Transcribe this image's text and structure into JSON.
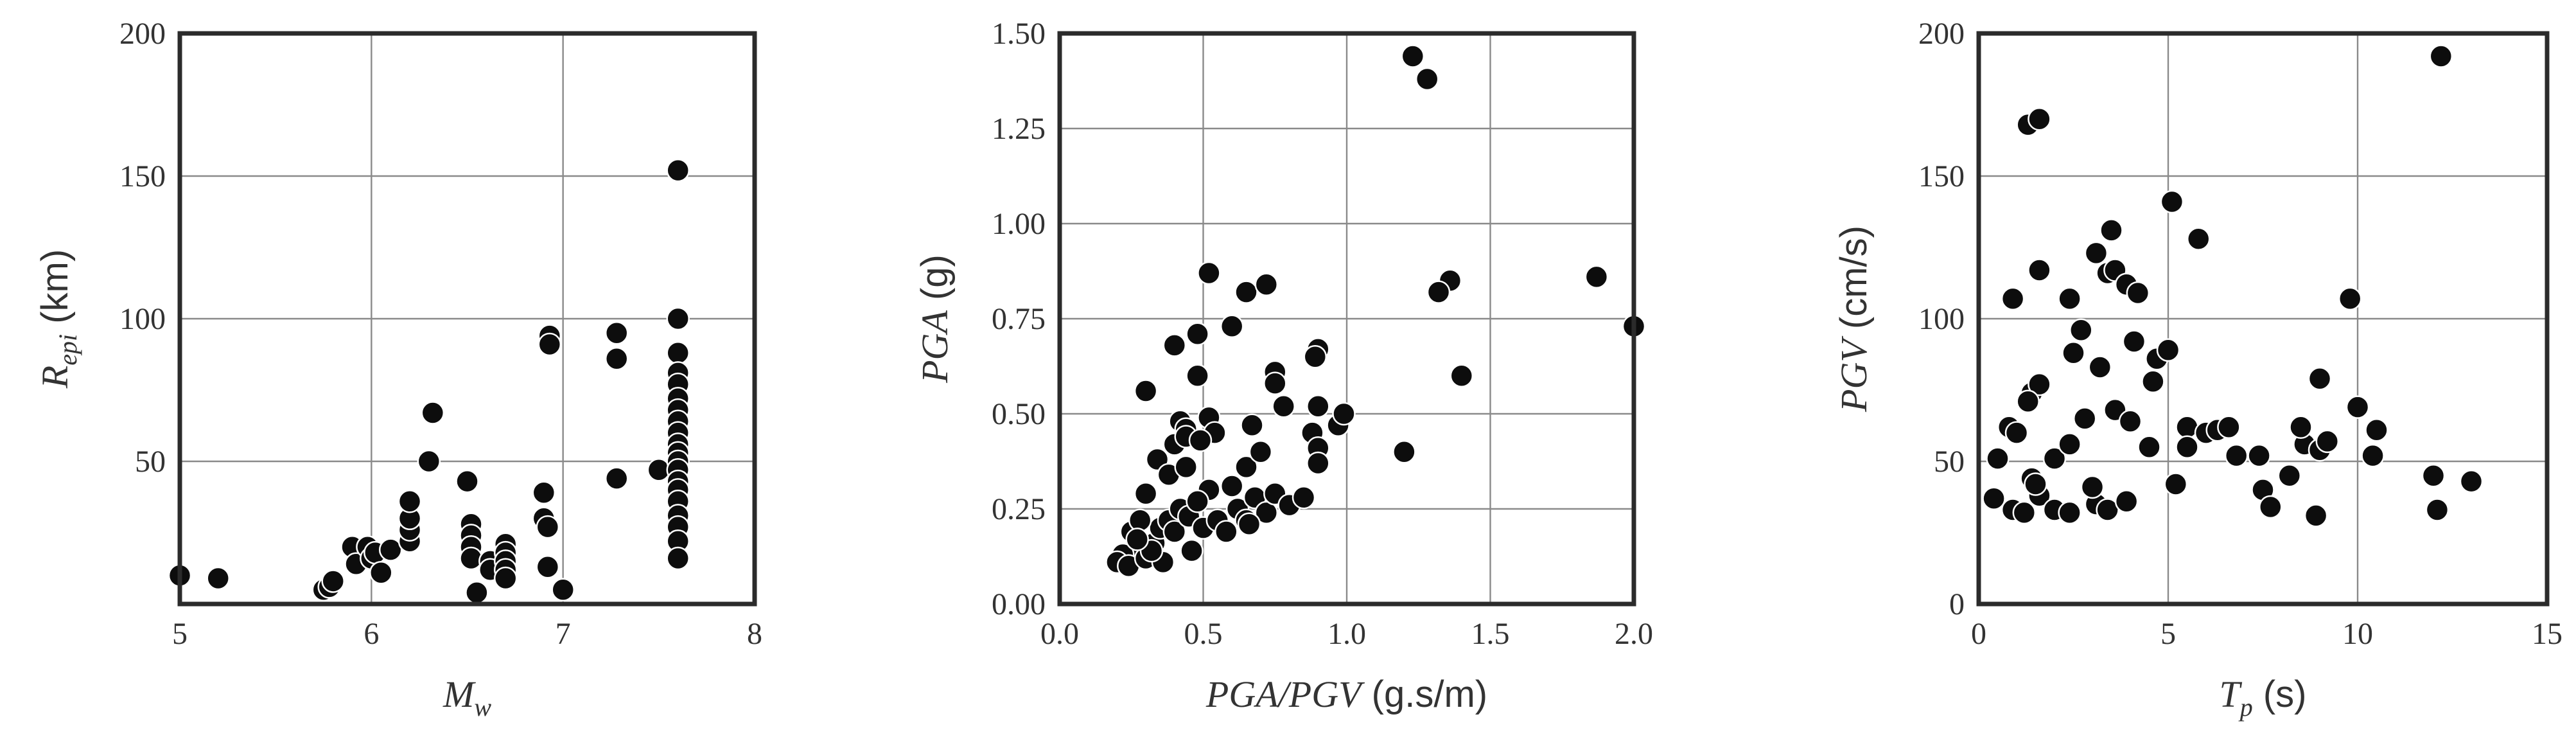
{
  "chart_data": [
    {
      "type": "scatter",
      "xlabel": {
        "main": "M",
        "sub": "w",
        "unit": ""
      },
      "ylabel": {
        "main": "R",
        "sub": "epi",
        "unit": " (km)"
      },
      "xlim": [
        5,
        8
      ],
      "ylim": [
        0,
        200
      ],
      "xticks": [
        5,
        6,
        7,
        8
      ],
      "yticks": [
        50,
        100,
        150,
        200
      ],
      "x_tick_labels": [
        "5",
        "6",
        "7",
        "8"
      ],
      "y_tick_labels": [
        "50",
        "100",
        "150",
        "200"
      ],
      "grid": true,
      "points": [
        [
          5.0,
          10
        ],
        [
          5.2,
          9
        ],
        [
          5.75,
          5
        ],
        [
          5.78,
          6
        ],
        [
          5.8,
          8
        ],
        [
          5.9,
          20
        ],
        [
          5.92,
          14
        ],
        [
          5.98,
          20
        ],
        [
          6.0,
          16
        ],
        [
          6.02,
          18
        ],
        [
          6.05,
          11
        ],
        [
          6.1,
          19
        ],
        [
          6.2,
          22
        ],
        [
          6.2,
          26
        ],
        [
          6.2,
          30
        ],
        [
          6.2,
          36
        ],
        [
          6.3,
          50
        ],
        [
          6.32,
          67
        ],
        [
          6.5,
          43
        ],
        [
          6.52,
          28
        ],
        [
          6.52,
          24
        ],
        [
          6.52,
          20
        ],
        [
          6.52,
          16
        ],
        [
          6.55,
          4
        ],
        [
          6.62,
          15
        ],
        [
          6.62,
          12
        ],
        [
          6.7,
          21
        ],
        [
          6.7,
          18
        ],
        [
          6.7,
          15
        ],
        [
          6.7,
          12
        ],
        [
          6.7,
          9
        ],
        [
          6.9,
          39
        ],
        [
          6.9,
          30
        ],
        [
          6.92,
          27
        ],
        [
          6.92,
          13
        ],
        [
          6.93,
          94
        ],
        [
          6.93,
          91
        ],
        [
          7.0,
          5
        ],
        [
          7.28,
          95
        ],
        [
          7.28,
          86
        ],
        [
          7.28,
          44
        ],
        [
          7.5,
          47
        ],
        [
          7.6,
          152
        ],
        [
          7.6,
          100
        ],
        [
          7.6,
          88
        ],
        [
          7.6,
          81
        ],
        [
          7.6,
          77
        ],
        [
          7.6,
          72
        ],
        [
          7.6,
          68
        ],
        [
          7.6,
          64
        ],
        [
          7.6,
          60
        ],
        [
          7.6,
          56
        ],
        [
          7.6,
          53
        ],
        [
          7.6,
          50
        ],
        [
          7.6,
          47
        ],
        [
          7.6,
          43
        ],
        [
          7.6,
          40
        ],
        [
          7.6,
          36
        ],
        [
          7.6,
          31
        ],
        [
          7.6,
          27
        ],
        [
          7.6,
          22
        ],
        [
          7.6,
          16
        ]
      ]
    },
    {
      "type": "scatter",
      "xlabel": {
        "main": "PGA/PGV",
        "sub": "",
        "unit": " (g.s/m)"
      },
      "ylabel": {
        "main": "PGA",
        "sub": "",
        "unit": " (g)"
      },
      "xlim": [
        0,
        2
      ],
      "ylim": [
        0,
        1.5
      ],
      "xticks": [
        0,
        0.5,
        1,
        1.5,
        2
      ],
      "yticks": [
        0,
        0.25,
        0.5,
        0.75,
        1,
        1.25,
        1.5
      ],
      "x_tick_labels": [
        "0.0",
        "0.5",
        "1.0",
        "1.5",
        "2.0"
      ],
      "y_tick_labels": [
        "0.00",
        "0.25",
        "0.50",
        "0.75",
        "1.00",
        "1.25",
        "1.50"
      ],
      "grid": true,
      "points": [
        [
          1.23,
          1.44
        ],
        [
          1.28,
          1.38
        ],
        [
          0.52,
          0.87
        ],
        [
          0.65,
          0.82
        ],
        [
          0.72,
          0.84
        ],
        [
          1.36,
          0.85
        ],
        [
          1.32,
          0.82
        ],
        [
          1.87,
          0.86
        ],
        [
          2.0,
          0.73
        ],
        [
          0.48,
          0.71
        ],
        [
          0.6,
          0.73
        ],
        [
          0.4,
          0.68
        ],
        [
          0.9,
          0.67
        ],
        [
          0.89,
          0.65
        ],
        [
          0.75,
          0.61
        ],
        [
          0.75,
          0.58
        ],
        [
          0.3,
          0.56
        ],
        [
          1.4,
          0.6
        ],
        [
          0.48,
          0.6
        ],
        [
          0.42,
          0.48
        ],
        [
          0.44,
          0.46
        ],
        [
          0.52,
          0.49
        ],
        [
          0.54,
          0.45
        ],
        [
          0.78,
          0.52
        ],
        [
          0.9,
          0.52
        ],
        [
          0.97,
          0.47
        ],
        [
          0.99,
          0.5
        ],
        [
          0.4,
          0.42
        ],
        [
          0.44,
          0.44
        ],
        [
          0.49,
          0.43
        ],
        [
          0.67,
          0.47
        ],
        [
          0.34,
          0.38
        ],
        [
          0.38,
          0.34
        ],
        [
          0.3,
          0.29
        ],
        [
          0.44,
          0.36
        ],
        [
          0.52,
          0.3
        ],
        [
          0.6,
          0.31
        ],
        [
          0.65,
          0.36
        ],
        [
          0.7,
          0.4
        ],
        [
          0.88,
          0.45
        ],
        [
          0.9,
          0.41
        ],
        [
          0.9,
          0.37
        ],
        [
          1.2,
          0.4
        ],
        [
          0.25,
          0.19
        ],
        [
          0.28,
          0.15
        ],
        [
          0.22,
          0.13
        ],
        [
          0.2,
          0.11
        ],
        [
          0.24,
          0.1
        ],
        [
          0.3,
          0.12
        ],
        [
          0.33,
          0.16
        ],
        [
          0.35,
          0.2
        ],
        [
          0.38,
          0.22
        ],
        [
          0.4,
          0.19
        ],
        [
          0.42,
          0.25
        ],
        [
          0.45,
          0.23
        ],
        [
          0.48,
          0.27
        ],
        [
          0.46,
          0.14
        ],
        [
          0.5,
          0.2
        ],
        [
          0.55,
          0.22
        ],
        [
          0.58,
          0.19
        ],
        [
          0.62,
          0.25
        ],
        [
          0.65,
          0.22
        ],
        [
          0.68,
          0.28
        ],
        [
          0.72,
          0.24
        ],
        [
          0.75,
          0.29
        ],
        [
          0.8,
          0.26
        ],
        [
          0.85,
          0.28
        ],
        [
          0.36,
          0.11
        ],
        [
          0.32,
          0.14
        ],
        [
          0.28,
          0.22
        ],
        [
          0.27,
          0.17
        ],
        [
          0.66,
          0.21
        ]
      ]
    },
    {
      "type": "scatter",
      "xlabel": {
        "main": "T",
        "sub": "p",
        "unit": " (s)"
      },
      "ylabel": {
        "main": "PGV",
        "sub": "",
        "unit": " (cm/s)"
      },
      "xlim": [
        0,
        15
      ],
      "ylim": [
        0,
        200
      ],
      "xticks": [
        0,
        5,
        10,
        15
      ],
      "yticks": [
        0,
        50,
        100,
        150,
        200
      ],
      "x_tick_labels": [
        "0",
        "5",
        "10",
        "15"
      ],
      "y_tick_labels": [
        "0",
        "50",
        "100",
        "150",
        "200"
      ],
      "grid": true,
      "points": [
        [
          1.3,
          168
        ],
        [
          1.6,
          170
        ],
        [
          12.2,
          192
        ],
        [
          1.6,
          117
        ],
        [
          0.9,
          107
        ],
        [
          2.4,
          107
        ],
        [
          5.1,
          141
        ],
        [
          5.8,
          128
        ],
        [
          3.5,
          131
        ],
        [
          3.1,
          123
        ],
        [
          3.4,
          116
        ],
        [
          3.6,
          117
        ],
        [
          3.9,
          112
        ],
        [
          4.2,
          109
        ],
        [
          9.8,
          107
        ],
        [
          2.7,
          96
        ],
        [
          2.5,
          88
        ],
        [
          3.2,
          83
        ],
        [
          4.1,
          92
        ],
        [
          4.7,
          86
        ],
        [
          5.0,
          89
        ],
        [
          1.4,
          74
        ],
        [
          1.6,
          77
        ],
        [
          1.3,
          71
        ],
        [
          2.8,
          65
        ],
        [
          3.6,
          68
        ],
        [
          4.0,
          64
        ],
        [
          4.6,
          78
        ],
        [
          8.6,
          56
        ],
        [
          9.0,
          79
        ],
        [
          10.0,
          69
        ],
        [
          10.5,
          61
        ],
        [
          10.4,
          52
        ],
        [
          12.0,
          45
        ],
        [
          13.0,
          43
        ],
        [
          0.8,
          62
        ],
        [
          1.0,
          60
        ],
        [
          0.5,
          51
        ],
        [
          1.4,
          44
        ],
        [
          2.0,
          51
        ],
        [
          2.4,
          56
        ],
        [
          4.5,
          55
        ],
        [
          5.5,
          62
        ],
        [
          6.0,
          60
        ],
        [
          6.3,
          61
        ],
        [
          6.6,
          62
        ],
        [
          6.8,
          52
        ],
        [
          7.4,
          52
        ],
        [
          7.5,
          40
        ],
        [
          8.2,
          45
        ],
        [
          8.5,
          62
        ],
        [
          9.0,
          54
        ],
        [
          9.2,
          57
        ],
        [
          0.4,
          37
        ],
        [
          0.9,
          33
        ],
        [
          1.2,
          32
        ],
        [
          1.6,
          38
        ],
        [
          2.0,
          33
        ],
        [
          2.4,
          32
        ],
        [
          3.1,
          35
        ],
        [
          3.4,
          33
        ],
        [
          3.9,
          36
        ],
        [
          5.2,
          42
        ],
        [
          5.5,
          55
        ],
        [
          7.7,
          34
        ],
        [
          8.9,
          31
        ],
        [
          12.1,
          33
        ],
        [
          1.5,
          42
        ],
        [
          3.0,
          41
        ]
      ]
    }
  ]
}
